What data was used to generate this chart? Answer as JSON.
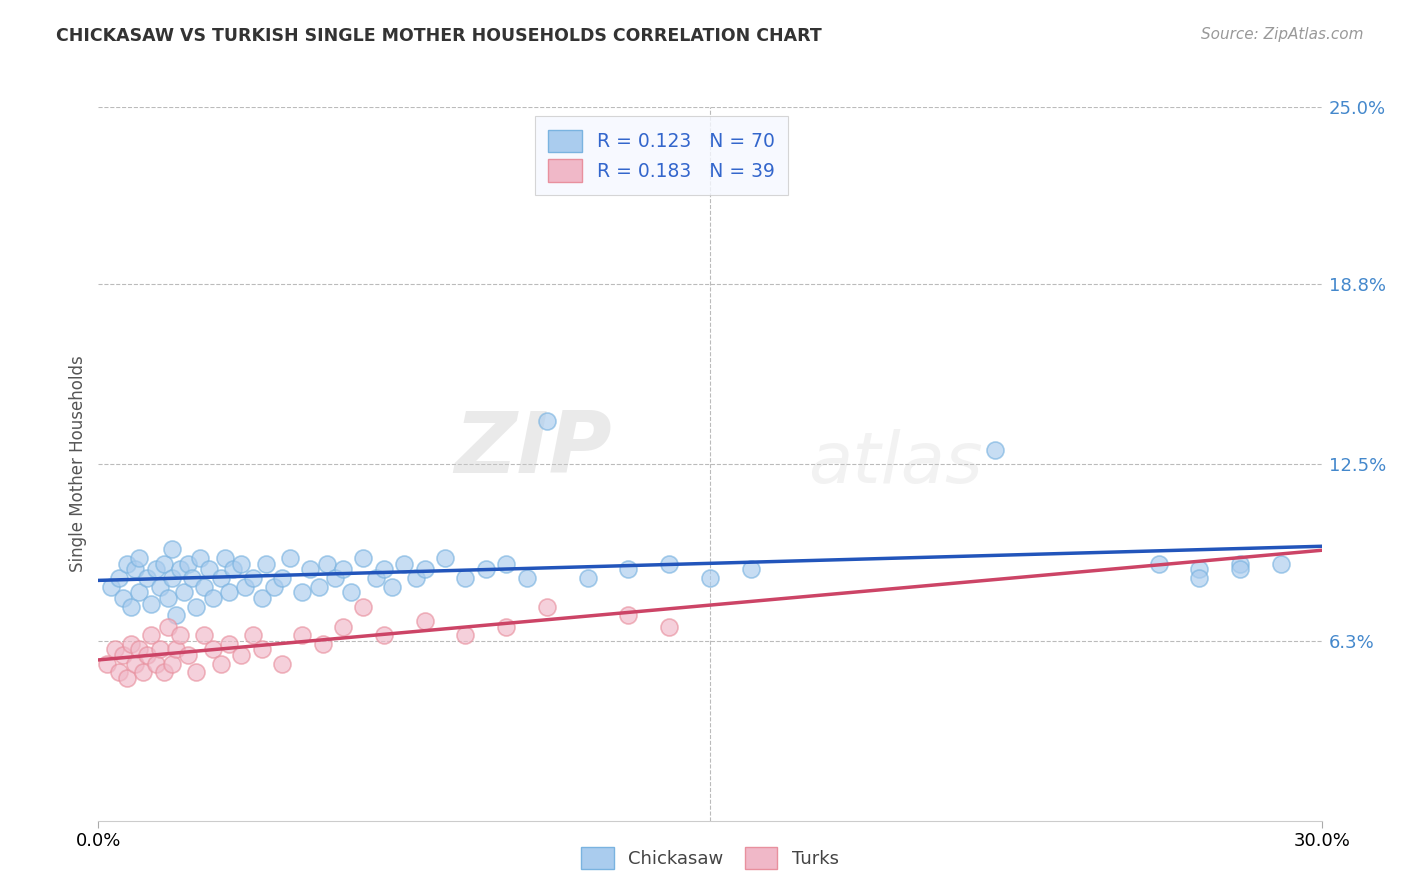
{
  "title": "CHICKASAW VS TURKISH SINGLE MOTHER HOUSEHOLDS CORRELATION CHART",
  "source_text": "Source: ZipAtlas.com",
  "ylabel": "Single Mother Households",
  "xlim": [
    0.0,
    0.3
  ],
  "ylim": [
    0.0,
    0.25
  ],
  "ytick_values": [
    0.063,
    0.125,
    0.188,
    0.25
  ],
  "ytick_labels": [
    "6.3%",
    "12.5%",
    "18.8%",
    "25.0%"
  ],
  "chickasaw_color": "#7ab3e0",
  "chickasaw_fill": "#aaccee",
  "turks_color": "#e8909e",
  "turks_fill": "#f0b8c8",
  "line_chickasaw": "#2255bb",
  "line_turks": "#cc4466",
  "R_chickasaw": 0.123,
  "N_chickasaw": 70,
  "R_turks": 0.183,
  "N_turks": 39,
  "watermark_zip": "ZIP",
  "watermark_atlas": "atlas",
  "chickasaw_x": [
    0.003,
    0.005,
    0.006,
    0.007,
    0.008,
    0.009,
    0.01,
    0.01,
    0.012,
    0.013,
    0.014,
    0.015,
    0.016,
    0.017,
    0.018,
    0.018,
    0.019,
    0.02,
    0.021,
    0.022,
    0.023,
    0.024,
    0.025,
    0.026,
    0.027,
    0.028,
    0.03,
    0.031,
    0.032,
    0.033,
    0.035,
    0.036,
    0.038,
    0.04,
    0.041,
    0.043,
    0.045,
    0.047,
    0.05,
    0.052,
    0.054,
    0.056,
    0.058,
    0.06,
    0.062,
    0.065,
    0.068,
    0.07,
    0.072,
    0.075,
    0.078,
    0.08,
    0.085,
    0.09,
    0.095,
    0.1,
    0.105,
    0.11,
    0.12,
    0.13,
    0.14,
    0.15,
    0.16,
    0.22,
    0.26,
    0.27,
    0.27,
    0.28,
    0.28,
    0.29
  ],
  "chickasaw_y": [
    0.082,
    0.085,
    0.078,
    0.09,
    0.075,
    0.088,
    0.08,
    0.092,
    0.085,
    0.076,
    0.088,
    0.082,
    0.09,
    0.078,
    0.085,
    0.095,
    0.072,
    0.088,
    0.08,
    0.09,
    0.085,
    0.075,
    0.092,
    0.082,
    0.088,
    0.078,
    0.085,
    0.092,
    0.08,
    0.088,
    0.09,
    0.082,
    0.085,
    0.078,
    0.09,
    0.082,
    0.085,
    0.092,
    0.08,
    0.088,
    0.082,
    0.09,
    0.085,
    0.088,
    0.08,
    0.092,
    0.085,
    0.088,
    0.082,
    0.09,
    0.085,
    0.088,
    0.092,
    0.085,
    0.088,
    0.09,
    0.085,
    0.14,
    0.085,
    0.088,
    0.09,
    0.085,
    0.088,
    0.13,
    0.09,
    0.088,
    0.085,
    0.09,
    0.088,
    0.09
  ],
  "turks_x": [
    0.002,
    0.004,
    0.005,
    0.006,
    0.007,
    0.008,
    0.009,
    0.01,
    0.011,
    0.012,
    0.013,
    0.014,
    0.015,
    0.016,
    0.017,
    0.018,
    0.019,
    0.02,
    0.022,
    0.024,
    0.026,
    0.028,
    0.03,
    0.032,
    0.035,
    0.038,
    0.04,
    0.045,
    0.05,
    0.055,
    0.06,
    0.065,
    0.07,
    0.08,
    0.09,
    0.1,
    0.11,
    0.13,
    0.14
  ],
  "turks_y": [
    0.055,
    0.06,
    0.052,
    0.058,
    0.05,
    0.062,
    0.055,
    0.06,
    0.052,
    0.058,
    0.065,
    0.055,
    0.06,
    0.052,
    0.068,
    0.055,
    0.06,
    0.065,
    0.058,
    0.052,
    0.065,
    0.06,
    0.055,
    0.062,
    0.058,
    0.065,
    0.06,
    0.055,
    0.065,
    0.062,
    0.068,
    0.075,
    0.065,
    0.07,
    0.065,
    0.068,
    0.075,
    0.072,
    0.068
  ]
}
